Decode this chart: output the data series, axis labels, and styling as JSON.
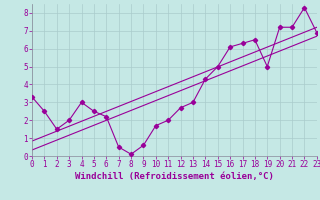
{
  "title": "",
  "xlabel": "Windchill (Refroidissement éolien,°C)",
  "ylabel": "",
  "bg_color": "#c5e8e5",
  "grid_color": "#aacccc",
  "line_color": "#990099",
  "x_data": [
    0,
    1,
    2,
    3,
    4,
    5,
    6,
    7,
    8,
    9,
    10,
    11,
    12,
    13,
    14,
    15,
    16,
    17,
    18,
    19,
    20,
    21,
    22,
    23
  ],
  "y_data": [
    3.3,
    2.5,
    1.5,
    2.0,
    3.0,
    2.5,
    2.2,
    0.5,
    0.1,
    0.6,
    1.7,
    2.0,
    2.7,
    3.0,
    4.3,
    5.0,
    6.1,
    6.3,
    6.5,
    5.0,
    7.2,
    7.2,
    8.3,
    6.9
  ],
  "xlim": [
    0,
    23
  ],
  "ylim": [
    0,
    8.5
  ],
  "xticks": [
    0,
    1,
    2,
    3,
    4,
    5,
    6,
    7,
    8,
    9,
    10,
    11,
    12,
    13,
    14,
    15,
    16,
    17,
    18,
    19,
    20,
    21,
    22,
    23
  ],
  "yticks": [
    0,
    1,
    2,
    3,
    4,
    5,
    6,
    7,
    8
  ],
  "tick_fontsize": 5.5,
  "xlabel_fontsize": 6.5,
  "lw": 0.8,
  "marker_size": 2.2
}
